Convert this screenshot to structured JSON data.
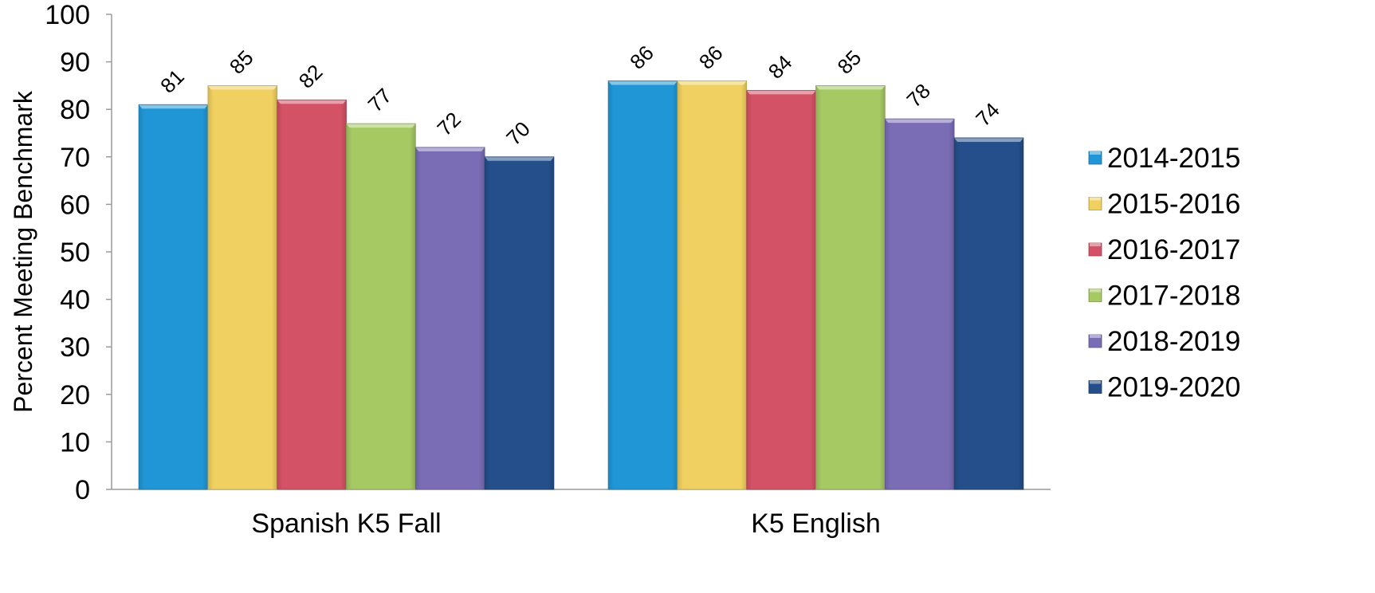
{
  "chart_data": {
    "type": "bar",
    "title": "",
    "xlabel": "",
    "ylabel": "Percent Meeting Benchmark",
    "ylim": [
      0,
      100
    ],
    "yticks": [
      0,
      10,
      20,
      30,
      40,
      50,
      60,
      70,
      80,
      90,
      100
    ],
    "categories": [
      "Spanish K5 Fall",
      "K5 English"
    ],
    "series": [
      {
        "name": "2014-2015",
        "values": [
          81,
          86
        ],
        "color": "#2196d6"
      },
      {
        "name": "2015-2016",
        "values": [
          85,
          86
        ],
        "color": "#f0d060"
      },
      {
        "name": "2016-2017",
        "values": [
          82,
          84
        ],
        "color": "#d45266"
      },
      {
        "name": "2017-2018",
        "values": [
          77,
          85
        ],
        "color": "#a6c964"
      },
      {
        "name": "2018-2019",
        "values": [
          72,
          78
        ],
        "color": "#7a6db5"
      },
      {
        "name": "2019-2020",
        "values": [
          70,
          74
        ],
        "color": "#244f8a"
      }
    ],
    "data_labels": true,
    "data_label_rotation": "angled",
    "legend_position": "right",
    "grid": false
  }
}
